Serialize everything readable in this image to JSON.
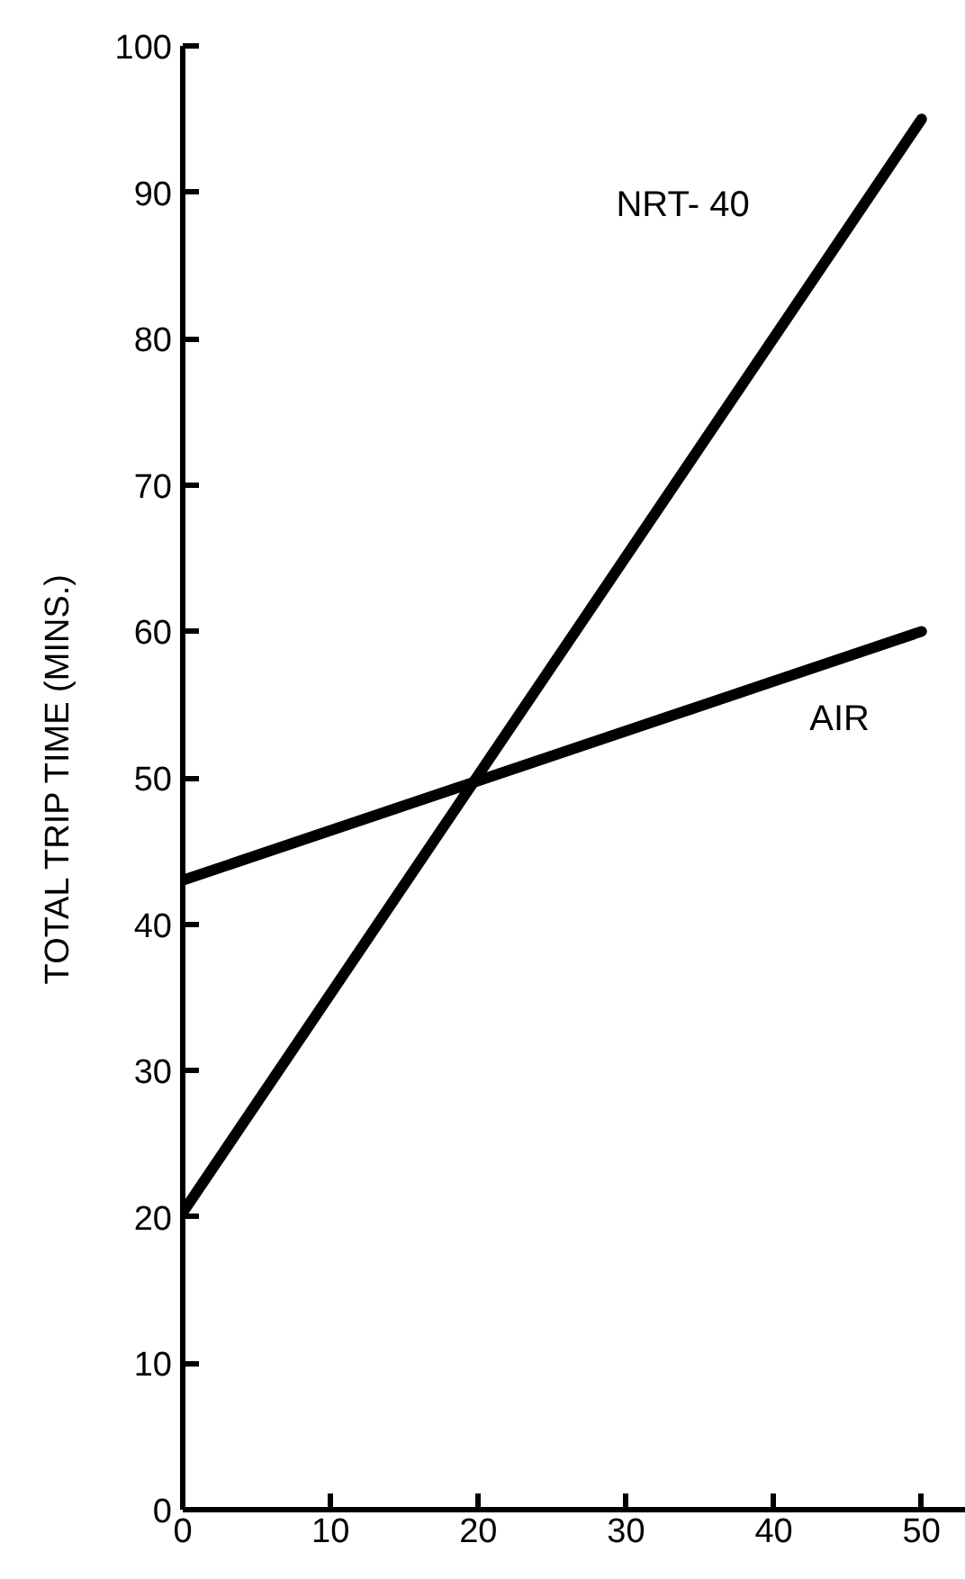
{
  "chart_data": {
    "type": "line",
    "ylabel": "TOTAL TRIP TIME (MINS.)",
    "x": [
      0,
      50
    ],
    "series": [
      {
        "name": "NRT- 40",
        "color": "#000000",
        "values": [
          20.3,
          95
        ]
      },
      {
        "name": "AIR",
        "color": "#000000",
        "values": [
          43,
          60
        ]
      }
    ],
    "xlim": [
      0,
      53
    ],
    "ylim": [
      0,
      100
    ],
    "xticks": [
      0,
      10,
      20,
      30,
      40,
      50
    ],
    "yticks": [
      0,
      10,
      20,
      30,
      40,
      50,
      60,
      70,
      80,
      90,
      100
    ],
    "grid": false,
    "marker": "none",
    "line_style": "solid"
  }
}
